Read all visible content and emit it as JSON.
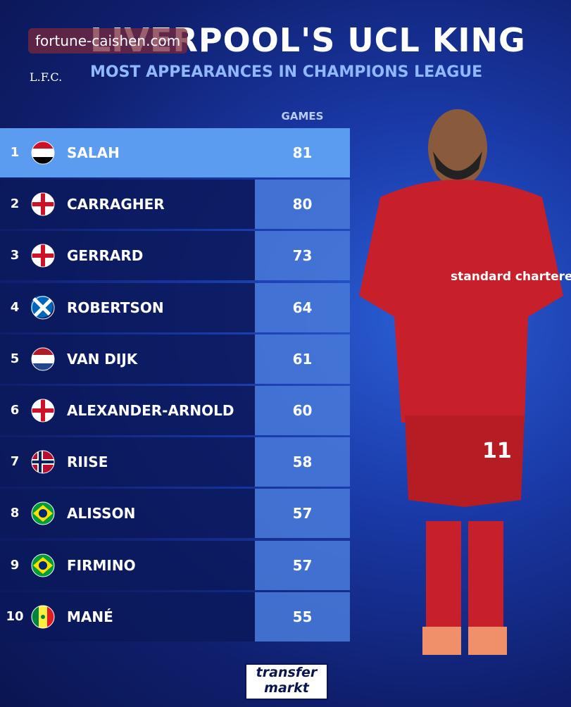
{
  "watermark": "fortune-caishen.com",
  "logo": "L.F.C.",
  "header": {
    "title": "LIVERPOOL'S UCL KING",
    "subtitle": "MOST APPEARANCES IN CHAMPIONS LEAGUE"
  },
  "table": {
    "column_header": "GAMES",
    "rows": [
      {
        "rank": 1,
        "name": "SALAH",
        "games": 81
      },
      {
        "rank": 2,
        "name": "CARRAGHER",
        "games": 80
      },
      {
        "rank": 3,
        "name": "GERRARD",
        "games": 73
      },
      {
        "rank": 4,
        "name": "ROBERTSON",
        "games": 64
      },
      {
        "rank": 5,
        "name": "VAN DIJK",
        "games": 61
      },
      {
        "rank": 6,
        "name": "ALEXANDER-ARNOLD",
        "games": 60
      },
      {
        "rank": 7,
        "name": "RIISE",
        "games": 58
      },
      {
        "rank": 8,
        "name": "ALISSON",
        "games": 57
      },
      {
        "rank": 9,
        "name": "FIRMINO",
        "games": 57
      },
      {
        "rank": 10,
        "name": "MANÉ",
        "games": 55
      }
    ]
  },
  "photo": {
    "sponsor": "standard chartered",
    "shirt_number": "11"
  },
  "footer": {
    "brand_line1": "transfer",
    "brand_line2": "markt"
  }
}
